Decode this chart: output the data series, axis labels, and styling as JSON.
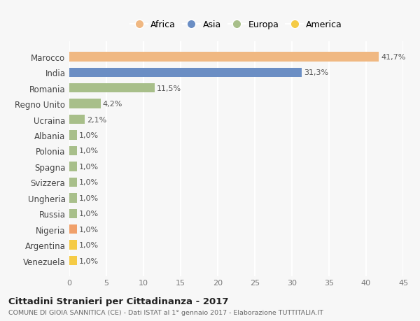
{
  "countries": [
    "Venezuela",
    "Argentina",
    "Nigeria",
    "Russia",
    "Ungheria",
    "Svizzera",
    "Spagna",
    "Polonia",
    "Albania",
    "Ucraina",
    "Regno Unito",
    "Romania",
    "India",
    "Marocco"
  ],
  "values": [
    1.0,
    1.0,
    1.0,
    1.0,
    1.0,
    1.0,
    1.0,
    1.0,
    1.0,
    2.1,
    4.2,
    11.5,
    31.3,
    41.7
  ],
  "labels": [
    "1,0%",
    "1,0%",
    "1,0%",
    "1,0%",
    "1,0%",
    "1,0%",
    "1,0%",
    "1,0%",
    "1,0%",
    "2,1%",
    "4,2%",
    "11,5%",
    "31,3%",
    "41,7%"
  ],
  "colors": [
    "#f5cb45",
    "#f5cb45",
    "#f0a06a",
    "#a8bf8a",
    "#a8bf8a",
    "#a8bf8a",
    "#a8bf8a",
    "#a8bf8a",
    "#a8bf8a",
    "#a8bf8a",
    "#a8bf8a",
    "#a8bf8a",
    "#6b8ec4",
    "#f0b882"
  ],
  "legend": [
    {
      "label": "Africa",
      "color": "#f0b882"
    },
    {
      "label": "Asia",
      "color": "#6b8ec4"
    },
    {
      "label": "Europa",
      "color": "#a8bf8a"
    },
    {
      "label": "America",
      "color": "#f5cb45"
    }
  ],
  "xlim": [
    0,
    45
  ],
  "xticks": [
    0,
    5,
    10,
    15,
    20,
    25,
    30,
    35,
    40,
    45
  ],
  "title_main": "Cittadini Stranieri per Cittadinanza - 2017",
  "title_sub": "COMUNE DI GIOIA SANNITICA (CE) - Dati ISTAT al 1° gennaio 2017 - Elaborazione TUTTITALIA.IT",
  "bg_color": "#f7f7f7",
  "grid_color": "#ffffff",
  "bar_height": 0.6
}
